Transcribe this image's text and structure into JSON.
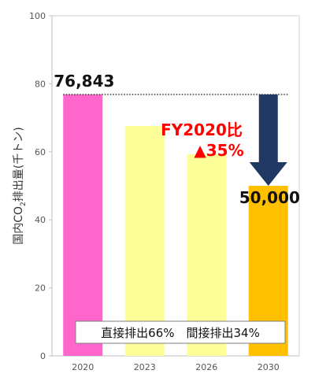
{
  "chart_data": {
    "type": "bar",
    "categories": [
      "2020",
      "2023",
      "2026",
      "2030"
    ],
    "values": [
      76.843,
      67.6,
      59.3,
      50.0
    ],
    "bar_colors": [
      "#ff66cc",
      "#ffff99",
      "#ffff99",
      "#ffc000"
    ],
    "ylabel": "国内CO2排出量(千トン)",
    "ylabel_parts": {
      "before": "国内CO",
      "sub": "2",
      "after": "排出量(千トン)"
    },
    "ylim": [
      0,
      100
    ],
    "yticks": [
      0,
      20,
      40,
      60,
      80,
      100
    ],
    "grid": false,
    "data_labels": {
      "2020": "76,843",
      "2030": "50,000"
    },
    "reference_line": {
      "y": 76.843,
      "from": "2020",
      "to": "2030",
      "style": "dotted"
    },
    "reduction_arrow": {
      "from": 76.843,
      "to": 50.0,
      "category": "2030",
      "color": "#1f3864"
    },
    "annotation": {
      "line1": "FY2020比",
      "line2": "▲35%",
      "color": "#ff0000"
    },
    "breakdown_box": {
      "text": "直接排出66%　間接排出34%"
    }
  }
}
